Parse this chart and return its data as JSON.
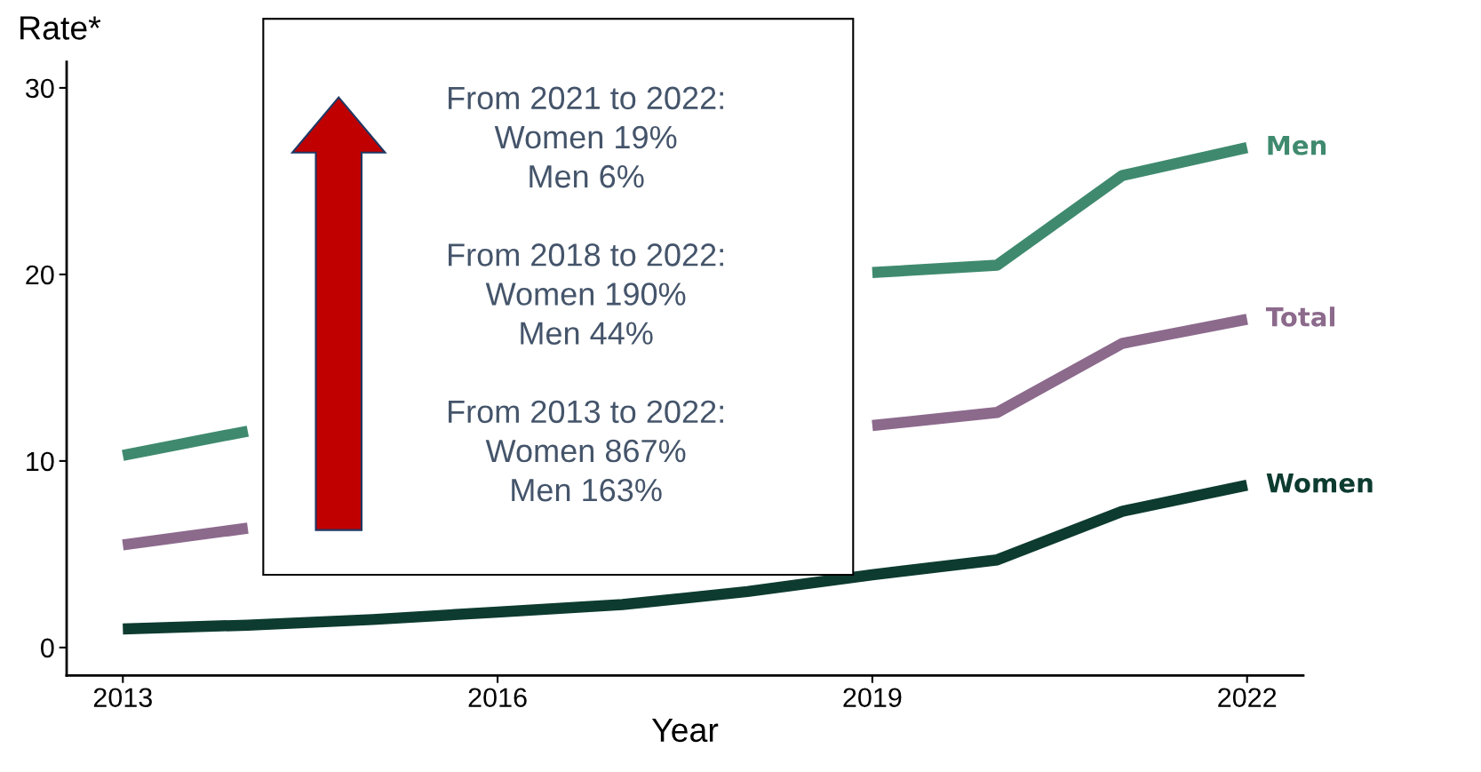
{
  "chart_data": {
    "type": "line",
    "ylabel": "Rate*",
    "xlabel": "Year",
    "x": [
      2013,
      2014,
      2015,
      2016,
      2017,
      2018,
      2019,
      2020,
      2021,
      2022
    ],
    "series": [
      {
        "name": "Men",
        "color": "#3f8a6e",
        "values": [
          10.3,
          11.6,
          null,
          null,
          null,
          null,
          20.1,
          20.5,
          25.3,
          26.8
        ]
      },
      {
        "name": "Total",
        "color": "#8c6a8c",
        "values": [
          5.5,
          6.4,
          null,
          null,
          null,
          null,
          11.9,
          12.6,
          16.3,
          17.6
        ]
      },
      {
        "name": "Women",
        "color": "#0d3b30",
        "values": [
          1.0,
          1.2,
          1.5,
          1.9,
          2.3,
          3.0,
          3.9,
          4.7,
          7.3,
          8.7
        ]
      }
    ],
    "xlim": [
      2012.55,
      2022.45
    ],
    "ylim": [
      -1.5,
      31.4
    ],
    "xticks": [
      2013,
      2016,
      2019,
      2022
    ],
    "yticks": [
      0,
      10,
      20,
      30
    ],
    "grid": false,
    "legend": false,
    "marker": "none",
    "line_style": "solid",
    "annotations": [
      "From 2021 to 2022:\nWomen 19%\nMen 6%\n\nFrom 2018 to 2022:\nWomen 190%\nMen 44%\n\nFrom 2013 to 2022:\nWomen 867%\nMen 163%"
    ]
  }
}
